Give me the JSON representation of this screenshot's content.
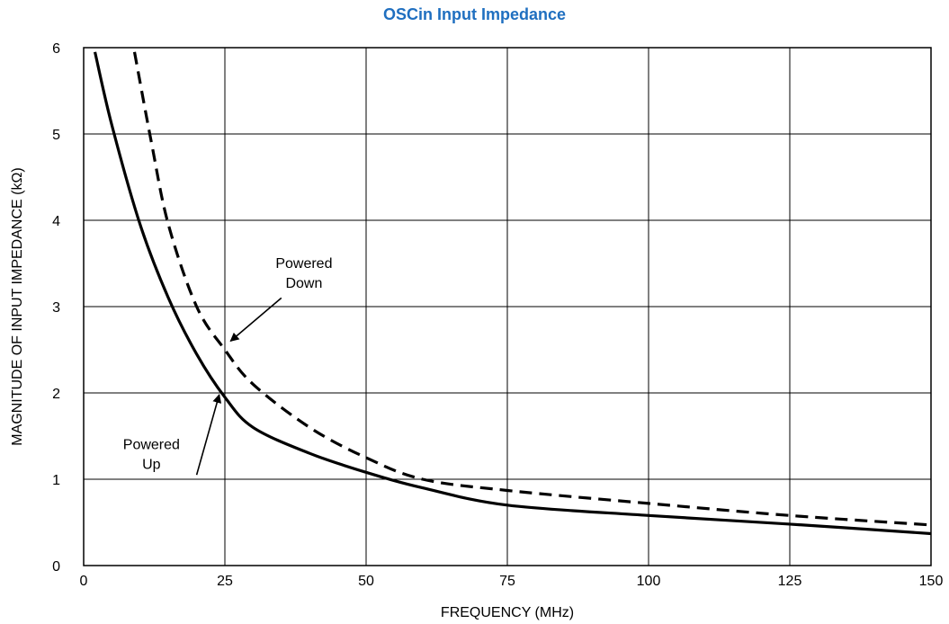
{
  "chart_data": {
    "type": "line",
    "title": "OSCin Input Impedance",
    "xlabel": "FREQUENCY (MHz)",
    "ylabel": "MAGNITUDE OF INPUT IMPEDANCE (kΩ)",
    "xlim": [
      0,
      150
    ],
    "ylim": [
      0,
      6
    ],
    "xticks": [
      0,
      25,
      50,
      75,
      100,
      125,
      150
    ],
    "yticks": [
      0,
      1,
      2,
      3,
      4,
      5,
      6
    ],
    "xtick_labels": [
      "0",
      "25",
      "50",
      "75",
      "100",
      "125",
      "150"
    ],
    "ytick_labels": [
      "0",
      "1",
      "2",
      "3",
      "4",
      "5",
      "6"
    ],
    "grid": true,
    "series": [
      {
        "name": "Powered Up",
        "style": "solid",
        "color": "#000000",
        "x": [
          2,
          5,
          10,
          15,
          20,
          25,
          30,
          40,
          50,
          60,
          75,
          100,
          125,
          150
        ],
        "y": [
          5.95,
          5.1,
          3.95,
          3.1,
          2.45,
          1.95,
          1.6,
          1.3,
          1.08,
          0.9,
          0.7,
          0.58,
          0.48,
          0.37
        ]
      },
      {
        "name": "Powered Down",
        "style": "dashed",
        "color": "#000000",
        "x": [
          9,
          12,
          15,
          20,
          25,
          30,
          40,
          50,
          60,
          75,
          100,
          125,
          150
        ],
        "y": [
          5.95,
          4.9,
          3.95,
          3.0,
          2.5,
          2.1,
          1.6,
          1.25,
          1.0,
          0.87,
          0.72,
          0.58,
          0.47
        ]
      }
    ],
    "annotations": [
      {
        "lines": [
          "Powered",
          "Down"
        ],
        "text_at": [
          39,
          3.45
        ],
        "arrow_from": [
          35,
          3.1
        ],
        "arrow_to": [
          26,
          2.6
        ]
      },
      {
        "lines": [
          "Powered",
          "Up"
        ],
        "text_at": [
          12,
          1.35
        ],
        "arrow_from": [
          20,
          1.05
        ],
        "arrow_to": [
          24,
          1.98
        ]
      }
    ]
  }
}
